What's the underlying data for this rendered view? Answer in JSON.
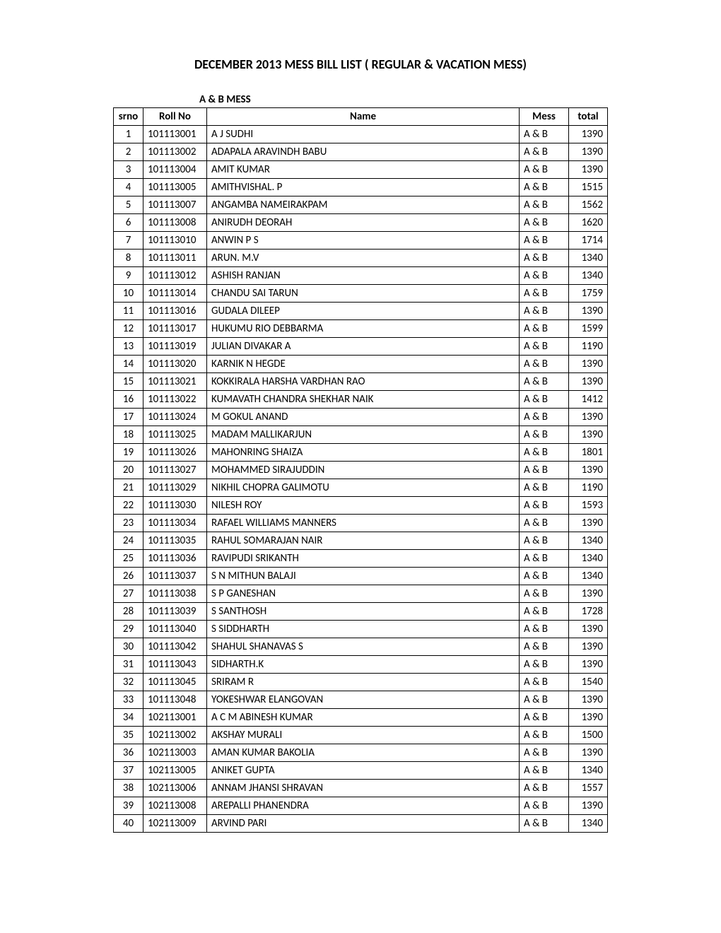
{
  "page": {
    "title": "DECEMBER 2013 MESS BILL LIST ( REGULAR & VACATION MESS)",
    "subtitle": "A & B MESS"
  },
  "table": {
    "columns": {
      "srno": "srno",
      "roll": "Roll No",
      "name": "Name",
      "mess": "Mess",
      "total": "total"
    },
    "rows": [
      {
        "srno": "1",
        "roll": "101113001",
        "name": "A J SUDHI",
        "mess": "A & B",
        "total": "1390"
      },
      {
        "srno": "2",
        "roll": "101113002",
        "name": "ADAPALA ARAVINDH BABU",
        "mess": "A & B",
        "total": "1390"
      },
      {
        "srno": "3",
        "roll": "101113004",
        "name": "AMIT KUMAR",
        "mess": "A & B",
        "total": "1390"
      },
      {
        "srno": "4",
        "roll": "101113005",
        "name": "AMITHVISHAL. P",
        "mess": "A & B",
        "total": "1515"
      },
      {
        "srno": "5",
        "roll": "101113007",
        "name": "ANGAMBA NAMEIRAKPAM",
        "mess": "A & B",
        "total": "1562"
      },
      {
        "srno": "6",
        "roll": "101113008",
        "name": "ANIRUDH DEORAH",
        "mess": "A & B",
        "total": "1620"
      },
      {
        "srno": "7",
        "roll": "101113010",
        "name": "ANWIN P S",
        "mess": "A & B",
        "total": "1714"
      },
      {
        "srno": "8",
        "roll": "101113011",
        "name": "ARUN. M.V",
        "mess": "A & B",
        "total": "1340"
      },
      {
        "srno": "9",
        "roll": "101113012",
        "name": "ASHISH RANJAN",
        "mess": "A & B",
        "total": "1340"
      },
      {
        "srno": "10",
        "roll": "101113014",
        "name": "CHANDU SAI TARUN",
        "mess": "A & B",
        "total": "1759"
      },
      {
        "srno": "11",
        "roll": "101113016",
        "name": "GUDALA DILEEP",
        "mess": "A & B",
        "total": "1390"
      },
      {
        "srno": "12",
        "roll": "101113017",
        "name": "HUKUMU RIO DEBBARMA",
        "mess": "A & B",
        "total": "1599"
      },
      {
        "srno": "13",
        "roll": "101113019",
        "name": "JULIAN DIVAKAR A",
        "mess": "A & B",
        "total": "1190"
      },
      {
        "srno": "14",
        "roll": "101113020",
        "name": "KARNIK N HEGDE",
        "mess": "A & B",
        "total": "1390"
      },
      {
        "srno": "15",
        "roll": "101113021",
        "name": "KOKKIRALA HARSHA VARDHAN RAO",
        "mess": "A & B",
        "total": "1390"
      },
      {
        "srno": "16",
        "roll": "101113022",
        "name": "KUMAVATH CHANDRA SHEKHAR NAIK",
        "mess": "A & B",
        "total": "1412"
      },
      {
        "srno": "17",
        "roll": "101113024",
        "name": "M GOKUL ANAND",
        "mess": "A & B",
        "total": "1390"
      },
      {
        "srno": "18",
        "roll": "101113025",
        "name": "MADAM MALLIKARJUN",
        "mess": "A & B",
        "total": "1390"
      },
      {
        "srno": "19",
        "roll": "101113026",
        "name": "MAHONRING SHAIZA",
        "mess": "A & B",
        "total": "1801"
      },
      {
        "srno": "20",
        "roll": "101113027",
        "name": "MOHAMMED SIRAJUDDIN",
        "mess": "A & B",
        "total": "1390"
      },
      {
        "srno": "21",
        "roll": "101113029",
        "name": "NIKHIL CHOPRA GALIMOTU",
        "mess": "A & B",
        "total": "1190"
      },
      {
        "srno": "22",
        "roll": "101113030",
        "name": "NILESH ROY",
        "mess": "A & B",
        "total": "1593"
      },
      {
        "srno": "23",
        "roll": "101113034",
        "name": "RAFAEL WILLIAMS MANNERS",
        "mess": "A & B",
        "total": "1390"
      },
      {
        "srno": "24",
        "roll": "101113035",
        "name": "RAHUL SOMARAJAN NAIR",
        "mess": "A & B",
        "total": "1340"
      },
      {
        "srno": "25",
        "roll": "101113036",
        "name": "RAVIPUDI SRIKANTH",
        "mess": "A & B",
        "total": "1340"
      },
      {
        "srno": "26",
        "roll": "101113037",
        "name": "S N MITHUN BALAJI",
        "mess": "A & B",
        "total": "1340"
      },
      {
        "srno": "27",
        "roll": "101113038",
        "name": "S P GANESHAN",
        "mess": "A & B",
        "total": "1390"
      },
      {
        "srno": "28",
        "roll": "101113039",
        "name": "S SANTHOSH",
        "mess": "A & B",
        "total": "1728"
      },
      {
        "srno": "29",
        "roll": "101113040",
        "name": "S SIDDHARTH",
        "mess": "A & B",
        "total": "1390"
      },
      {
        "srno": "30",
        "roll": "101113042",
        "name": "SHAHUL SHANAVAS S",
        "mess": "A & B",
        "total": "1390"
      },
      {
        "srno": "31",
        "roll": "101113043",
        "name": "SIDHARTH.K",
        "mess": "A & B",
        "total": "1390"
      },
      {
        "srno": "32",
        "roll": "101113045",
        "name": "SRIRAM R",
        "mess": "A & B",
        "total": "1540"
      },
      {
        "srno": "33",
        "roll": "101113048",
        "name": "YOKESHWAR ELANGOVAN",
        "mess": "A & B",
        "total": "1390"
      },
      {
        "srno": "34",
        "roll": "102113001",
        "name": "A C M ABINESH KUMAR",
        "mess": "A & B",
        "total": "1390"
      },
      {
        "srno": "35",
        "roll": "102113002",
        "name": "AKSHAY MURALI",
        "mess": "A & B",
        "total": "1500"
      },
      {
        "srno": "36",
        "roll": "102113003",
        "name": "AMAN KUMAR BAKOLIA",
        "mess": "A & B",
        "total": "1390"
      },
      {
        "srno": "37",
        "roll": "102113005",
        "name": "ANIKET GUPTA",
        "mess": "A & B",
        "total": "1340"
      },
      {
        "srno": "38",
        "roll": "102113006",
        "name": "ANNAM JHANSI SHRAVAN",
        "mess": "A & B",
        "total": "1557"
      },
      {
        "srno": "39",
        "roll": "102113008",
        "name": "AREPALLI PHANENDRA",
        "mess": "A & B",
        "total": "1390"
      },
      {
        "srno": "40",
        "roll": "102113009",
        "name": "ARVIND PARI",
        "mess": "A & B",
        "total": "1340"
      }
    ]
  }
}
